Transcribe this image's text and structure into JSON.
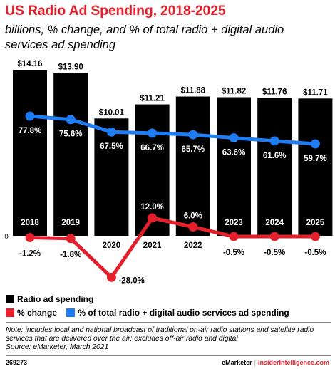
{
  "header": {
    "title": "US Radio Ad Spending, 2018-2025",
    "subtitle": "billions, % change, and % of total radio + digital audio services ad spending"
  },
  "chart_data": {
    "type": "bar",
    "categories": [
      "2018",
      "2019",
      "2020",
      "2021",
      "2022",
      "2023",
      "2024",
      "2025"
    ],
    "y_zero_label": "0",
    "grid": false,
    "legend_position": "bottom-left",
    "series": [
      {
        "name": "Radio ad spending",
        "type": "bar",
        "color": "#000000",
        "values": [
          14.16,
          13.9,
          10.01,
          11.21,
          11.88,
          11.82,
          11.76,
          11.71
        ],
        "labels": [
          "$14.16",
          "$13.90",
          "$10.01",
          "$11.21",
          "$11.88",
          "$11.82",
          "$11.76",
          "$11.71"
        ]
      },
      {
        "name": "% change",
        "type": "line",
        "color": "#e4202c",
        "values": [
          -1.2,
          -1.8,
          -28.0,
          12.0,
          6.0,
          -0.5,
          -0.5,
          -0.5
        ],
        "labels": [
          "-1.2%",
          "-1.8%",
          "-28.0%",
          "12.0%",
          "6.0%",
          "-0.5%",
          "-0.5%",
          "-0.5%"
        ]
      },
      {
        "name": "% of total radio + digital audio services ad spending",
        "type": "line",
        "color": "#1f7cf2",
        "values": [
          77.8,
          75.6,
          67.5,
          66.7,
          65.7,
          63.6,
          61.6,
          59.7
        ],
        "labels": [
          "77.8%",
          "75.6%",
          "67.5%",
          "66.7%",
          "65.7%",
          "63.6%",
          "61.6%",
          "59.7%"
        ]
      }
    ]
  },
  "legend": [
    {
      "label": "Radio ad spending",
      "color": "#000000"
    },
    {
      "label": "% change",
      "color": "#e4202c"
    },
    {
      "label": "% of total radio + digital audio services ad spending",
      "color": "#1f7cf2"
    }
  ],
  "note": "Note: includes local and national broadcast of traditional on-air radio stations and satellite radio services that are delivered over the air; excludes off-air radio and digital",
  "source": "Source: eMarketer, March 2021",
  "footer": {
    "id": "269273",
    "brand_left": "eMarketer",
    "brand_sep": "|",
    "brand_right": "InsiderIntelligence.com"
  }
}
